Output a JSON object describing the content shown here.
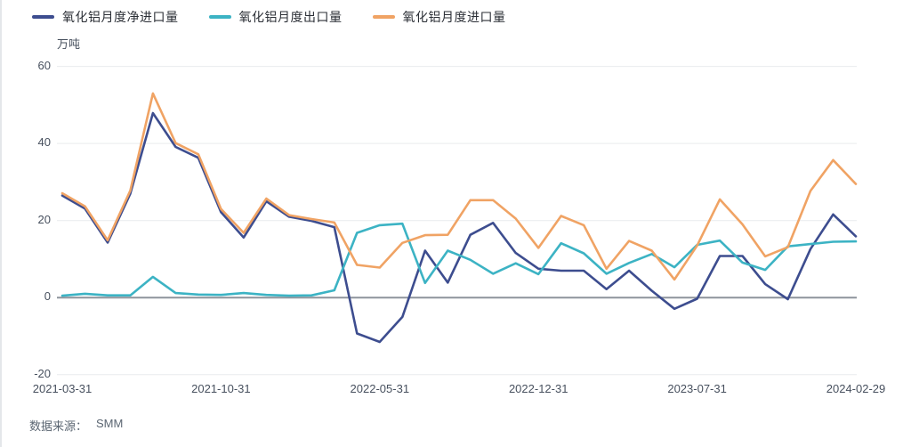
{
  "legend": {
    "items": [
      {
        "label": "氧化铝月度净进口量",
        "color": "#3d4d8f"
      },
      {
        "label": "氧化铝月度出口量",
        "color": "#3cb3c4"
      },
      {
        "label": "氧化铝月度进口量",
        "color": "#f0a364"
      }
    ]
  },
  "y_axis": {
    "unit": "万吨",
    "tick_values": [
      60,
      40,
      20,
      0,
      -20
    ]
  },
  "x_axis": {
    "tick_labels": [
      "2021-03-31",
      "2021-10-31",
      "2022-05-31",
      "2022-12-31",
      "2023-07-31",
      "2024-02-29"
    ],
    "tick_month_indices": [
      0,
      7,
      14,
      21,
      28,
      35
    ]
  },
  "footer": {
    "source_label": "数据来源：",
    "source_value": "SMM"
  },
  "colors": {
    "net_import": "#3d4d8f",
    "export": "#3cb3c4",
    "import": "#f0a364",
    "gridline": "#e9ebee",
    "zero_line": "#8d949c",
    "axis_text": "#47505e"
  },
  "chart_data": {
    "type": "line",
    "title": "",
    "ylabel": "万吨",
    "xlabel": "",
    "ylim": [
      -20,
      60
    ],
    "yticks": [
      60,
      40,
      20,
      0,
      -20
    ],
    "grid": true,
    "legend_position": "top-left",
    "markers": false,
    "x": [
      "2021-03-31",
      "2021-04-30",
      "2021-05-31",
      "2021-06-30",
      "2021-07-31",
      "2021-08-31",
      "2021-09-30",
      "2021-10-31",
      "2021-11-30",
      "2021-12-31",
      "2022-01-31",
      "2022-02-28",
      "2022-03-31",
      "2022-04-30",
      "2022-05-31",
      "2022-06-30",
      "2022-07-31",
      "2022-08-31",
      "2022-09-30",
      "2022-10-31",
      "2022-11-30",
      "2022-12-31",
      "2023-01-31",
      "2023-02-28",
      "2023-03-31",
      "2023-04-30",
      "2023-05-31",
      "2023-06-30",
      "2023-07-31",
      "2023-08-31",
      "2023-09-30",
      "2023-10-31",
      "2023-11-30",
      "2023-12-31",
      "2024-01-31",
      "2024-02-29"
    ],
    "series": [
      {
        "name": "氧化铝月度净进口量",
        "color": "#3d4d8f",
        "values": [
          26.5,
          23.1,
          14.3,
          27.0,
          47.9,
          39.1,
          36.3,
          22.2,
          15.6,
          25.0,
          21.0,
          19.9,
          18.3,
          -9.3,
          -11.5,
          -5.0,
          12.2,
          3.9,
          16.3,
          19.4,
          11.6,
          7.5,
          7.0,
          7.0,
          2.2,
          7.0,
          1.8,
          -2.9,
          -0.3,
          10.8,
          10.8,
          3.5,
          -0.4,
          12.6,
          21.6,
          15.9
        ]
      },
      {
        "name": "氧化铝月度出口量",
        "color": "#3cb3c4",
        "values": [
          0.5,
          1.0,
          0.6,
          0.6,
          5.4,
          1.2,
          0.8,
          0.7,
          1.2,
          0.7,
          0.5,
          0.6,
          1.9,
          16.8,
          18.8,
          19.2,
          3.8,
          12.2,
          9.8,
          6.2,
          8.9,
          6.1,
          14.1,
          11.5,
          6.2,
          9.0,
          11.3,
          7.9,
          13.7,
          14.8,
          9.1,
          7.2,
          13.3,
          13.9,
          14.5,
          14.6
        ]
      },
      {
        "name": "氧化铝月度进口量",
        "color": "#f0a364",
        "values": [
          27.1,
          23.7,
          14.9,
          27.8,
          53.0,
          40.1,
          37.2,
          23.0,
          16.8,
          25.7,
          21.4,
          20.4,
          19.5,
          8.5,
          7.8,
          14.2,
          16.2,
          16.3,
          25.3,
          25.3,
          20.5,
          12.9,
          21.2,
          18.8,
          7.5,
          14.7,
          12.2,
          4.7,
          13.5,
          25.5,
          19.0,
          10.7,
          13.1,
          27.7,
          35.7,
          29.5
        ]
      }
    ]
  }
}
